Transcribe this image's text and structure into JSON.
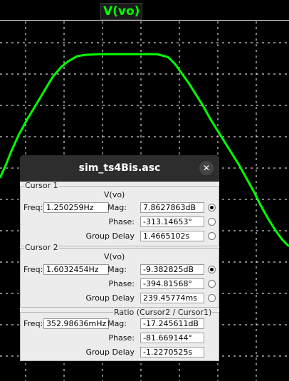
{
  "plot": {
    "title": "V(vo)",
    "trace_color": "#00ff00",
    "grid_color": "#ffffff"
  },
  "dialog": {
    "title": "sim_ts4Bis.asc",
    "close_label": "✕",
    "cursor1": {
      "group_label": "Cursor 1",
      "trace": "V(vo)",
      "freq_label": "Freq:",
      "freq": "1.250259Hz",
      "mag_label": "Mag:",
      "mag": "7.8627863dB",
      "phase_label": "Phase:",
      "phase": "-313.14653°",
      "gd_label": "Group Delay",
      "gd": "1.4665102s",
      "selected": "mag"
    },
    "cursor2": {
      "group_label": "Cursor 2",
      "trace": "V(vo)",
      "freq_label": "Freq:",
      "freq": "1.6032454Hz",
      "mag_label": "Mag:",
      "mag": "-9.382825dB",
      "phase_label": "Phase:",
      "phase": "-394.81568°",
      "gd_label": "Group Delay",
      "gd": "239.45774ms",
      "selected": "mag"
    },
    "ratio": {
      "group_label": "Ratio (Cursor2 / Cursor1)",
      "freq_label": "Freq:",
      "freq": "352.98636mHz",
      "mag_label": "Mag:",
      "mag": "-17.245611dB",
      "phase_label": "Phase:",
      "phase": "-81.669144°",
      "gd_label": "Group Delay",
      "gd": "-1.2270525s"
    }
  }
}
